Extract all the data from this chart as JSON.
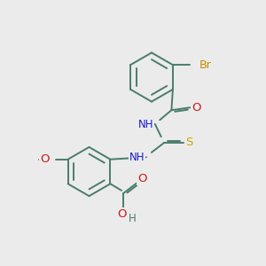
{
  "bg_color": "#ebebeb",
  "bond_color": "#4a7c6a",
  "bond_width": 1.4,
  "atom_colors": {
    "C": "#4a7c6a",
    "N": "#1a1acc",
    "O": "#cc1a1a",
    "S": "#ccaa00",
    "Br": "#cc8800",
    "H": "#4a7c6a"
  },
  "font_size": 8.5,
  "fig_size": [
    3.0,
    3.0
  ],
  "dpi": 100
}
